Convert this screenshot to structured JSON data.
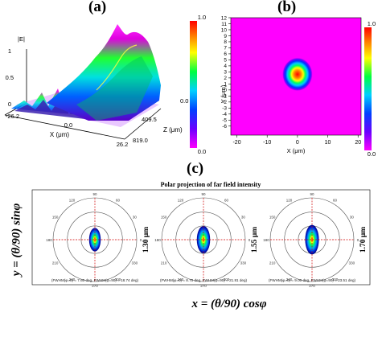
{
  "panels": {
    "a_label": "(a)",
    "b_label": "(b)",
    "c_label": "(c)"
  },
  "chart_data": [
    {
      "type": "surface",
      "panel": "(a)",
      "zlabel": "|E|",
      "xlabel": "X (μm)",
      "ylabel": "Z (μm)",
      "z_ticks": [
        "1",
        "0.5",
        "0"
      ],
      "x_ticks": [
        "-26.2",
        "0.0",
        "26.2"
      ],
      "y_ticks": [
        "0.0",
        "409.5",
        "819.0"
      ],
      "colorbar": {
        "min": "0.0",
        "max": "1.0"
      }
    },
    {
      "type": "heatmap",
      "panel": "(b)",
      "xlabel": "X (μm)",
      "ylabel": "Y (μm)",
      "x_ticks": [
        "-20",
        "-10",
        "0",
        "10",
        "20"
      ],
      "y_ticks": [
        "12",
        "11",
        "10",
        "9",
        "8",
        "7",
        "6",
        "5",
        "4",
        "3",
        "2",
        "1",
        "0",
        "-1",
        "-2",
        "-3",
        "-4",
        "-5",
        "-6"
      ],
      "xlim": [
        -22,
        21
      ],
      "ylim": [
        -7.5,
        12
      ],
      "spot_center": [
        0,
        2.6
      ],
      "colorbar": {
        "min": "0.0",
        "max": "1.0"
      },
      "colorbar_right": {
        "min": "0.0",
        "max": "1.0"
      }
    },
    {
      "type": "polar",
      "panel": "(c)",
      "title": "Polar projection of far field intensity",
      "ylabel": "y = (θ/90) sinφ",
      "xlabel": "x = (θ/90) cosφ",
      "angle_ticks": [
        "90",
        "60",
        "120",
        "30",
        "150",
        "0",
        "180",
        "330",
        "210",
        "300",
        "240",
        "270"
      ],
      "plots": [
        {
          "size": "1.30 μm",
          "caption": "(FWHM(φ=0) = 7.60 deg, FWHM(φ=90) = 18.74 deg)",
          "fwhm_phi0": 7.6,
          "fwhm_phi90": 18.74
        },
        {
          "size": "1.55 μm",
          "caption": "(FWHM(φ=0) = 8.70 deg, FWHM(φ=90) = 21.81 deg)",
          "fwhm_phi0": 8.7,
          "fwhm_phi90": 21.81
        },
        {
          "size": "1.70 μm",
          "caption": "(FWHM(φ=0) = 9.00 deg, FWHM(φ=90) = 23.51 deg)",
          "fwhm_phi0": 9.0,
          "fwhm_phi90": 23.51
        }
      ]
    }
  ]
}
